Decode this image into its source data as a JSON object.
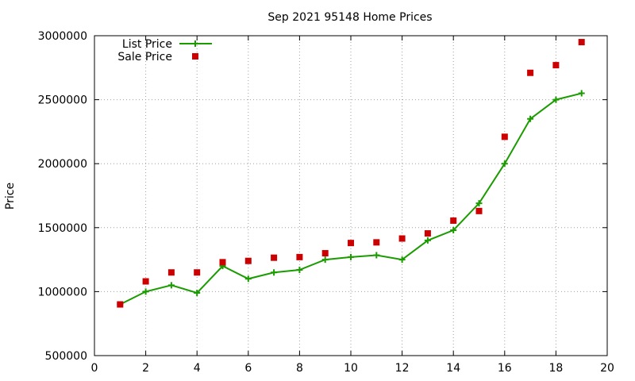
{
  "chart_data": {
    "type": "line",
    "title": "Sep 2021 95148 Home Prices",
    "xlabel": "",
    "ylabel": "Price",
    "xlim": [
      0,
      20
    ],
    "ylim": [
      500000,
      3000000
    ],
    "x_ticks": [
      0,
      2,
      4,
      6,
      8,
      10,
      12,
      14,
      16,
      18,
      20
    ],
    "y_ticks": [
      500000,
      1000000,
      1500000,
      2000000,
      2500000,
      3000000
    ],
    "x_tick_labels": [
      "0",
      "2",
      "4",
      "6",
      "8",
      "10",
      "12",
      "14",
      "16",
      "18",
      "20"
    ],
    "y_tick_labels": [
      "500000",
      "1000000",
      "1500000",
      "2000000",
      "2500000",
      "3000000"
    ],
    "grid": true,
    "legend_position": "top-left",
    "x": [
      1,
      2,
      3,
      4,
      5,
      6,
      7,
      8,
      9,
      10,
      11,
      12,
      13,
      14,
      15,
      16,
      17,
      18,
      19
    ],
    "series": [
      {
        "name": "List Price",
        "type": "line",
        "marker": "plus",
        "color": "#1a9c00",
        "values": [
          900000,
          1000000,
          1050000,
          990000,
          1200000,
          1100000,
          1150000,
          1170000,
          1250000,
          1270000,
          1285000,
          1250000,
          1400000,
          1480000,
          1690000,
          2000000,
          2350000,
          2500000,
          2550000
        ]
      },
      {
        "name": "Sale Price",
        "type": "scatter",
        "marker": "square",
        "color": "#cc0000",
        "values": [
          900000,
          1080000,
          1150000,
          1150000,
          1230000,
          1240000,
          1265000,
          1270000,
          1300000,
          1380000,
          1385000,
          1415000,
          1455000,
          1555000,
          1630000,
          2210000,
          2710000,
          2770000,
          2950000
        ]
      }
    ]
  }
}
